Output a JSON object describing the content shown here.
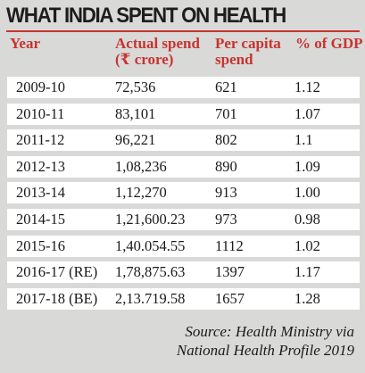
{
  "chart_data": {
    "type": "table",
    "title": "WHAT INDIA SPENT ON HEALTH",
    "columns": [
      {
        "line1": "Year",
        "line2": ""
      },
      {
        "line1": "Actual spend",
        "line2": "(₹ crore)"
      },
      {
        "line1": "Per capita",
        "line2": "spend"
      },
      {
        "line1": "% of GDP",
        "line2": ""
      }
    ],
    "rows": [
      [
        "2009-10",
        "72,536",
        "621",
        "1.12"
      ],
      [
        "2010-11",
        "83,101",
        "701",
        "1.07"
      ],
      [
        "2011-12",
        "96,221",
        "802",
        "1.1"
      ],
      [
        "2012-13",
        "1,08,236",
        "890",
        "1.09"
      ],
      [
        "2013-14",
        "1,12,270",
        "913",
        "1.00"
      ],
      [
        "2014-15",
        "1,21,600.23",
        "973",
        "0.98"
      ],
      [
        "2015-16",
        "1,40.054.55",
        "1112",
        "1.02"
      ],
      [
        "2016-17 (RE)",
        "1,78,875.63",
        "1397",
        "1.17"
      ],
      [
        "2017-18 (BE)",
        "2,13.719.58",
        "1657",
        "1.28"
      ]
    ],
    "source": {
      "line1": "Source: Health Ministry via",
      "line2": "National Health Profile 2019"
    }
  },
  "colors": {
    "background": "#d9d9d8",
    "accent": "#c8332f",
    "row_background": "#ffffff",
    "text": "#1a1a1a"
  }
}
